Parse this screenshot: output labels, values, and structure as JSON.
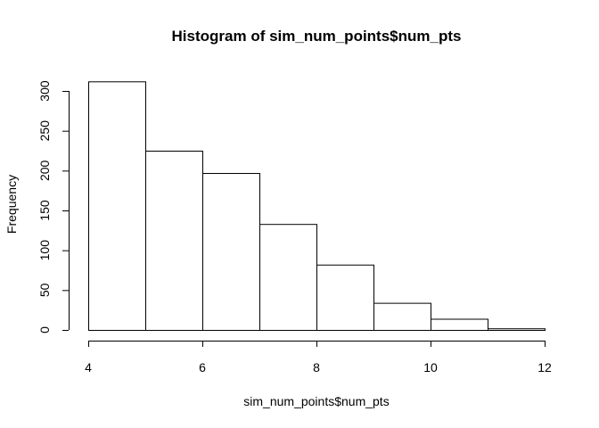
{
  "chart_data": {
    "type": "bar",
    "title": "Histogram of sim_num_points$num_pts",
    "xlabel": "sim_num_points$num_pts",
    "ylabel": "Frequency",
    "bins": [
      {
        "x0": 4,
        "x1": 5,
        "count": 312
      },
      {
        "x0": 5,
        "x1": 6,
        "count": 225
      },
      {
        "x0": 6,
        "x1": 7,
        "count": 197
      },
      {
        "x0": 7,
        "x1": 8,
        "count": 133
      },
      {
        "x0": 8,
        "x1": 9,
        "count": 82
      },
      {
        "x0": 9,
        "x1": 10,
        "count": 34
      },
      {
        "x0": 10,
        "x1": 11,
        "count": 14
      },
      {
        "x0": 11,
        "x1": 12,
        "count": 2
      }
    ],
    "xlim": [
      4,
      12
    ],
    "ylim": [
      0,
      300
    ],
    "xticks": [
      "4",
      "6",
      "8",
      "10",
      "12"
    ],
    "yticks": [
      "0",
      "50",
      "100",
      "150",
      "200",
      "250",
      "300"
    ],
    "grid": false,
    "legend": "none"
  }
}
